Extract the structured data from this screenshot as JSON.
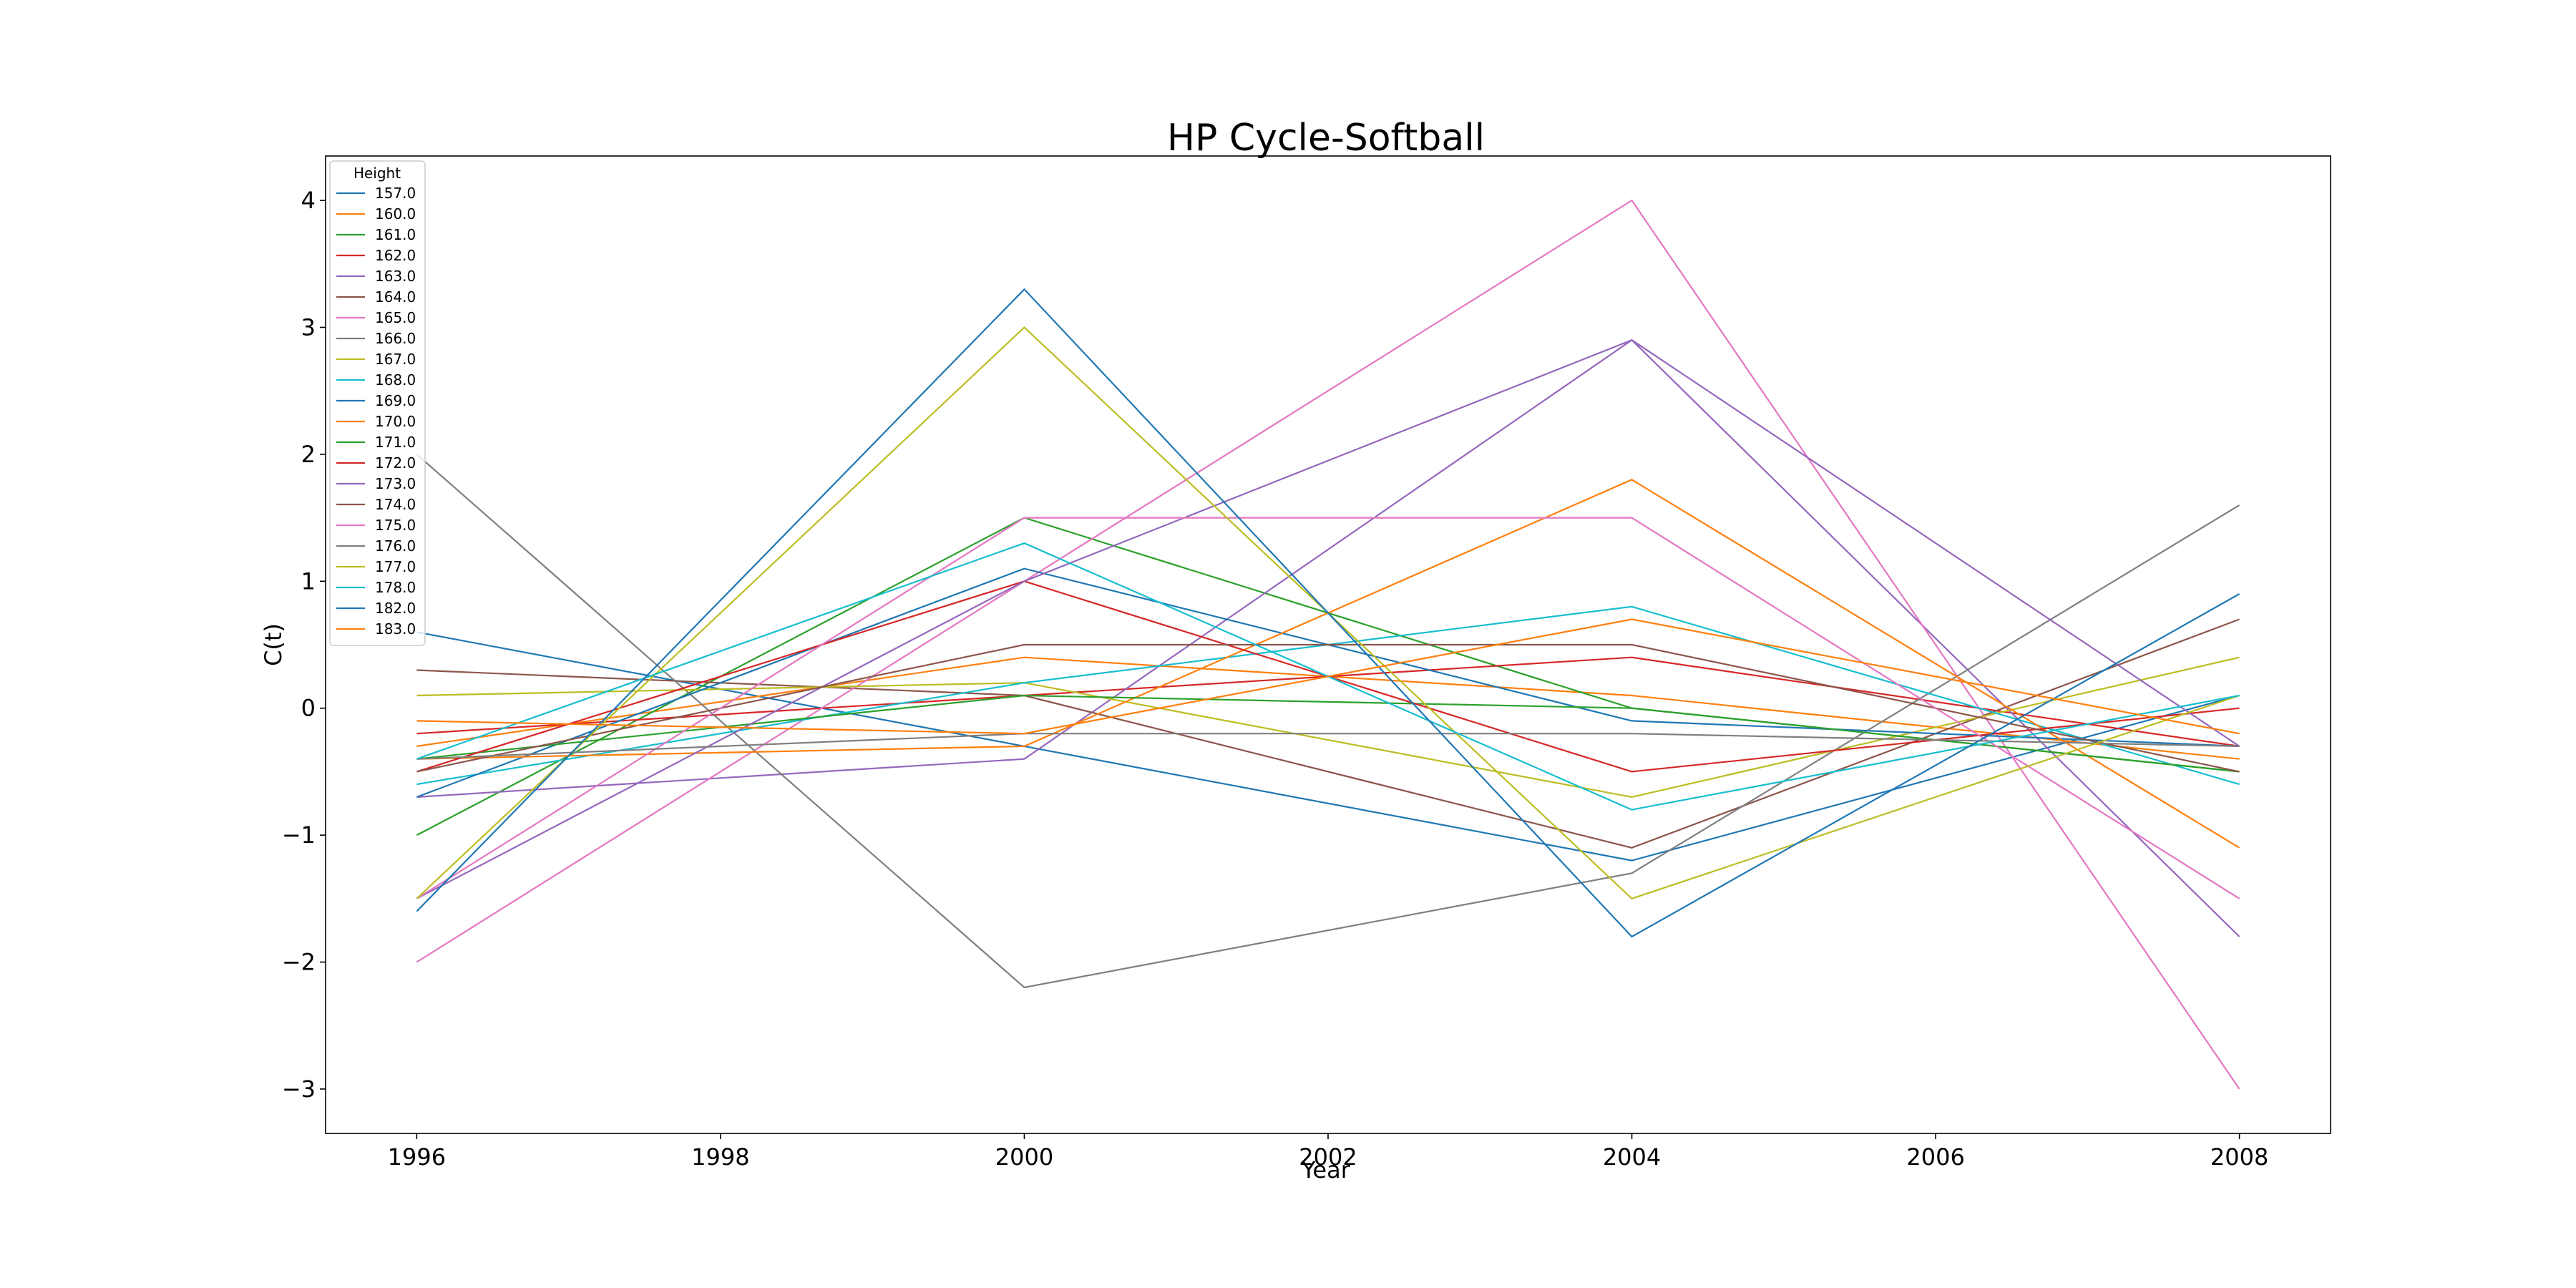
{
  "chart_data": {
    "type": "line",
    "title": "HP Cycle-Softball",
    "xlabel": "Year",
    "ylabel": "C(t)",
    "xlim": [
      1995.4,
      2008.6
    ],
    "ylim": [
      -3.35,
      4.35
    ],
    "xticks": [
      1996,
      1998,
      2000,
      2002,
      2004,
      2006,
      2008
    ],
    "yticks": [
      -3,
      -2,
      -1,
      0,
      1,
      2,
      3,
      4
    ],
    "grid": false,
    "legend": {
      "title": "Height",
      "placement": "top-left"
    },
    "x": [
      1996,
      2000,
      2004,
      2008
    ],
    "series": [
      {
        "name": "157.0",
        "color": "#1f77b4",
        "values": [
          0.6,
          -0.3,
          -1.2,
          0.1
        ]
      },
      {
        "name": "160.0",
        "color": "#ff7f0e",
        "values": [
          -0.3,
          0.4,
          0.1,
          -0.4
        ]
      },
      {
        "name": "161.0",
        "color": "#2ca02c",
        "values": [
          -1.0,
          1.5,
          0.0,
          -0.5
        ]
      },
      {
        "name": "162.0",
        "color": "#d62728",
        "values": [
          -0.2,
          0.1,
          0.4,
          -0.3
        ]
      },
      {
        "name": "163.0",
        "color": "#9467bd",
        "values": [
          -0.7,
          -0.4,
          2.9,
          -1.8
        ]
      },
      {
        "name": "164.0",
        "color": "#8c564b",
        "values": [
          0.3,
          0.1,
          -1.1,
          0.7
        ]
      },
      {
        "name": "165.0",
        "color": "#e377c2",
        "values": [
          -2.0,
          1.0,
          4.0,
          -3.0
        ]
      },
      {
        "name": "166.0",
        "color": "#7f7f7f",
        "values": [
          2.0,
          -2.2,
          -1.3,
          1.6
        ]
      },
      {
        "name": "167.0",
        "color": "#bcbd22",
        "values": [
          0.1,
          0.2,
          -0.7,
          0.4
        ]
      },
      {
        "name": "168.0",
        "color": "#17becf",
        "values": [
          -0.6,
          0.2,
          0.8,
          -0.6
        ]
      },
      {
        "name": "169.0",
        "color": "#1f77b4",
        "values": [
          -0.7,
          1.1,
          -0.1,
          -0.3
        ]
      },
      {
        "name": "170.0",
        "color": "#ff7f0e",
        "values": [
          -0.4,
          -0.3,
          1.8,
          -1.1
        ]
      },
      {
        "name": "171.0",
        "color": "#2ca02c",
        "values": [
          -0.4,
          0.1,
          0.0,
          -0.5
        ]
      },
      {
        "name": "172.0",
        "color": "#d62728",
        "values": [
          -0.5,
          1.0,
          -0.5,
          0.0
        ]
      },
      {
        "name": "173.0",
        "color": "#9467bd",
        "values": [
          -1.5,
          1.0,
          2.9,
          -0.3
        ]
      },
      {
        "name": "174.0",
        "color": "#8c564b",
        "values": [
          -0.5,
          0.5,
          0.5,
          -0.5
        ]
      },
      {
        "name": "175.0",
        "color": "#e377c2",
        "values": [
          -1.5,
          1.5,
          1.5,
          -1.5
        ]
      },
      {
        "name": "176.0",
        "color": "#7f7f7f",
        "values": [
          -0.4,
          -0.2,
          -0.2,
          -0.3
        ]
      },
      {
        "name": "177.0",
        "color": "#bcbd22",
        "values": [
          -1.5,
          3.0,
          -1.5,
          0.1
        ]
      },
      {
        "name": "178.0",
        "color": "#17becf",
        "values": [
          -0.4,
          1.3,
          -0.8,
          0.1
        ]
      },
      {
        "name": "182.0",
        "color": "#1f77b4",
        "values": [
          -1.6,
          3.3,
          -1.8,
          0.9
        ]
      },
      {
        "name": "183.0",
        "color": "#ff7f0e",
        "values": [
          -0.1,
          -0.2,
          0.7,
          -0.2
        ]
      }
    ]
  }
}
